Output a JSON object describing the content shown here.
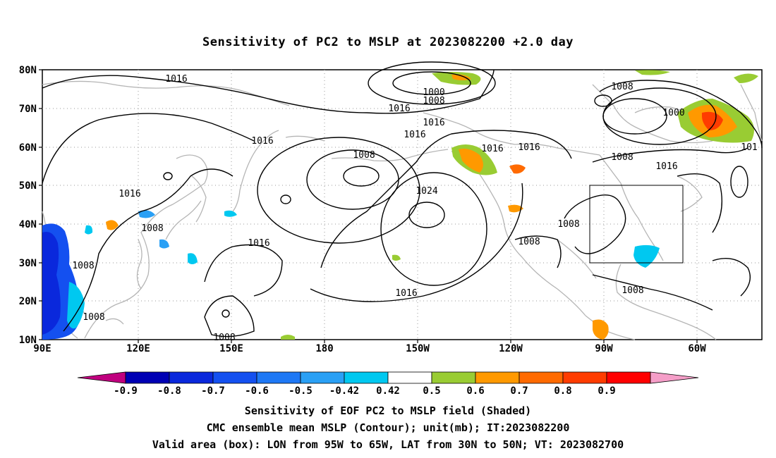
{
  "title": "Sensitivity of PC2 to MSLP at 2023082200 +2.0 day",
  "lat_labels": [
    "80N",
    "70N",
    "60N",
    "50N",
    "40N",
    "30N",
    "20N",
    "10N"
  ],
  "lon_labels": [
    "90E",
    "120E",
    "150E",
    "180",
    "150W",
    "120W",
    "90W",
    "60W"
  ],
  "contour_labels": [
    "1016",
    "1000",
    "1008",
    "1016",
    "1016",
    "1016",
    "1016",
    "1008",
    "1016",
    "1016",
    "1008",
    "1008",
    "1000",
    "1016",
    "101",
    "1016",
    "1024",
    "1008",
    "1008",
    "1008",
    "1016",
    "1008",
    "1008",
    "1016",
    "1008",
    "1008"
  ],
  "colorbar": {
    "labels": [
      "-0.9",
      "-0.8",
      "-0.7",
      "-0.6",
      "-0.5",
      "-0.42",
      "0.42",
      "0.5",
      "0.6",
      "0.7",
      "0.8",
      "0.9"
    ],
    "colors": [
      "#c0007f",
      "#0000b4",
      "#0a28dc",
      "#1450f0",
      "#1e78f5",
      "#2aa0f5",
      "#00c8f0",
      "#ffffff",
      "#99cc33",
      "#ff9900",
      "#ff6a00",
      "#ff3c00",
      "#ff0000",
      "#f59ec8"
    ]
  },
  "footer": {
    "line1": "Sensitivity of EOF PC2 to MSLP field (Shaded)",
    "line2": "CMC ensemble mean MSLP (Contour); unit(mb); IT:2023082200",
    "line3": "Valid area (box): LON from 95W to 65W, LAT from 30N to 50N; VT: 2023082700"
  },
  "valid_box": {
    "lon_from": "95W",
    "lon_to": "65W",
    "lat_from": "30N",
    "lat_to": "50N"
  }
}
